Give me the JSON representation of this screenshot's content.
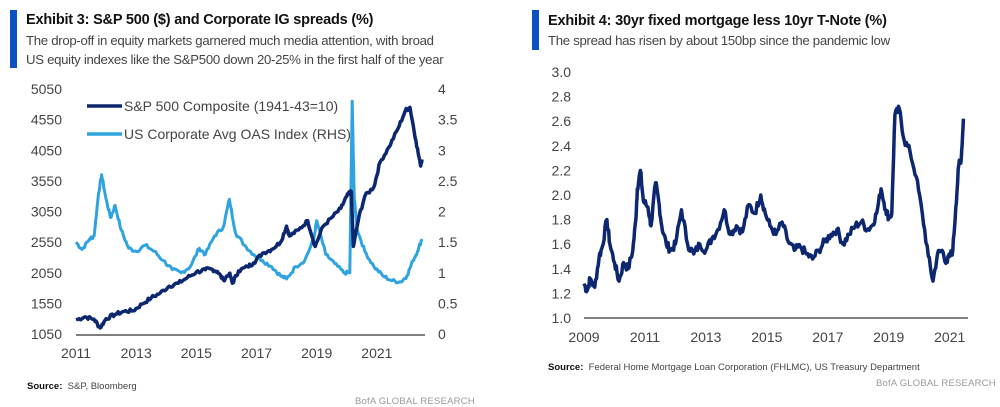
{
  "exhibits": [
    {
      "title": "Exhibit 3: S&P 500 ($) and Corporate IG spreads (%)",
      "subtitle_lines": [
        "The drop-off in equity markets garnered much media attention, with broad",
        "US equity indexes like the S&P500 down 20-25% in the first half of the year"
      ],
      "source_label": "Source:",
      "source_text": "S&P, Bloomberg",
      "brand": "BofA GLOBAL RESEARCH"
    },
    {
      "title": "Exhibit 4: 30yr fixed mortgage less 10yr T-Note (%)",
      "subtitle_lines": [
        "The spread has risen by about 150bp since the pandemic low"
      ],
      "source_label": "Source:",
      "source_text": "Federal Home Mortgage Loan Corporation (FHLMC), US Treasury Department",
      "brand": "BofA GLOBAL RESEARCH"
    }
  ],
  "colors": {
    "accent": "#0a52c4",
    "sp500": "#0c2670",
    "oas": "#2fa3df",
    "mortgage": "#0c2670",
    "axis": "#555555"
  },
  "chart_data": [
    {
      "type": "line",
      "title": "Exhibit 3: S&P 500 ($) and Corporate IG spreads (%)",
      "xlabel": "",
      "ylabel": "",
      "x_ticks": [
        "2011",
        "2013",
        "2015",
        "2017",
        "2019",
        "2021"
      ],
      "xlim": [
        2011.0,
        2022.6
      ],
      "ylim": [
        1050,
        5050
      ],
      "y_ticks": [
        "1050",
        "1550",
        "2050",
        "2550",
        "3050",
        "3550",
        "4050",
        "4550",
        "5050"
      ],
      "y2lim": [
        0,
        4
      ],
      "y2_ticks": [
        "0",
        "0.5",
        "1",
        "1.5",
        "2",
        "2.5",
        "3",
        "3.5",
        "4"
      ],
      "grid": false,
      "legend_position": "top-left",
      "series": [
        {
          "name": "S&P 500 Composite (1941-43=10)",
          "axis": "left",
          "x": [
            2011.0,
            2011.3,
            2011.6,
            2011.8,
            2012.0,
            2012.3,
            2012.6,
            2012.9,
            2013.2,
            2013.5,
            2013.8,
            2014.1,
            2014.4,
            2014.7,
            2015.0,
            2015.3,
            2015.5,
            2015.7,
            2015.9,
            2016.1,
            2016.2,
            2016.4,
            2016.7,
            2016.9,
            2017.2,
            2017.5,
            2017.8,
            2018.0,
            2018.1,
            2018.4,
            2018.7,
            2018.95,
            2019.2,
            2019.5,
            2019.8,
            2020.0,
            2020.15,
            2020.22,
            2020.4,
            2020.6,
            2020.9,
            2021.1,
            2021.4,
            2021.7,
            2021.95,
            2022.1,
            2022.3,
            2022.45,
            2022.5
          ],
          "values": [
            1280,
            1330,
            1290,
            1150,
            1300,
            1370,
            1420,
            1430,
            1540,
            1640,
            1720,
            1830,
            1880,
            1970,
            2060,
            2100,
            2110,
            2070,
            1930,
            2040,
            1880,
            2080,
            2150,
            2210,
            2370,
            2430,
            2550,
            2810,
            2650,
            2750,
            2900,
            2480,
            2800,
            2950,
            3100,
            3300,
            3380,
            2480,
            2950,
            3300,
            3450,
            3850,
            4100,
            4400,
            4700,
            4750,
            4200,
            3800,
            3900
          ]
        },
        {
          "name": "US Corporate Avg OAS Index (RHS)",
          "axis": "right",
          "x": [
            2011.0,
            2011.2,
            2011.45,
            2011.6,
            2011.75,
            2011.85,
            2012.0,
            2012.15,
            2012.3,
            2012.5,
            2012.75,
            2013.0,
            2013.3,
            2013.6,
            2013.9,
            2014.2,
            2014.5,
            2014.8,
            2015.1,
            2015.3,
            2015.6,
            2015.9,
            2016.1,
            2016.3,
            2016.6,
            2016.9,
            2017.2,
            2017.5,
            2017.8,
            2018.0,
            2018.3,
            2018.6,
            2018.9,
            2019.0,
            2019.3,
            2019.6,
            2019.9,
            2020.1,
            2020.18,
            2020.25,
            2020.35,
            2020.6,
            2020.9,
            2021.2,
            2021.5,
            2021.8,
            2022.0,
            2022.2,
            2022.35,
            2022.5
          ],
          "values": [
            1.5,
            1.38,
            1.55,
            1.6,
            2.3,
            2.6,
            2.2,
            1.9,
            2.1,
            1.7,
            1.4,
            1.35,
            1.45,
            1.35,
            1.2,
            1.05,
            1.0,
            1.1,
            1.4,
            1.3,
            1.6,
            1.75,
            2.2,
            1.65,
            1.45,
            1.3,
            1.2,
            1.1,
            0.95,
            0.9,
            1.1,
            1.2,
            1.55,
            1.85,
            1.3,
            1.15,
            1.0,
            1.0,
            3.8,
            2.2,
            1.7,
            1.35,
            1.1,
            0.95,
            0.87,
            0.85,
            0.95,
            1.2,
            1.35,
            1.55
          ]
        }
      ]
    },
    {
      "type": "line",
      "title": "Exhibit 4: 30yr fixed mortgage less 10yr T-Note (%)",
      "xlabel": "",
      "ylabel": "",
      "x_ticks": [
        "2009",
        "2011",
        "2013",
        "2015",
        "2017",
        "2019",
        "2021"
      ],
      "xlim": [
        2009.0,
        2021.6
      ],
      "ylim": [
        1.0,
        3.0
      ],
      "y_ticks": [
        "1.0",
        "1.2",
        "1.4",
        "1.6",
        "1.8",
        "2.0",
        "2.2",
        "2.4",
        "2.6",
        "2.8",
        "3.0"
      ],
      "grid": false,
      "legend_position": "none",
      "series": [
        {
          "name": "30yr fixed mortgage less 10yr T-Note",
          "x": [
            2009.0,
            2009.1,
            2009.2,
            2009.35,
            2009.5,
            2009.6,
            2009.75,
            2009.85,
            2010.0,
            2010.15,
            2010.3,
            2010.45,
            2010.6,
            2010.7,
            2010.75,
            2010.85,
            2010.95,
            2011.1,
            2011.2,
            2011.35,
            2011.45,
            2011.55,
            2011.7,
            2011.85,
            2012.0,
            2012.2,
            2012.4,
            2012.6,
            2012.8,
            2013.0,
            2013.2,
            2013.4,
            2013.6,
            2013.8,
            2014.0,
            2014.2,
            2014.4,
            2014.6,
            2014.8,
            2014.95,
            2015.1,
            2015.3,
            2015.5,
            2015.7,
            2015.9,
            2016.1,
            2016.3,
            2016.5,
            2016.7,
            2016.9,
            2017.1,
            2017.3,
            2017.5,
            2017.7,
            2017.9,
            2018.1,
            2018.3,
            2018.45,
            2018.6,
            2018.75,
            2018.9,
            2019.0,
            2019.1,
            2019.2,
            2019.35,
            2019.5,
            2019.7,
            2019.9,
            2020.1,
            2020.3,
            2020.45,
            2020.6,
            2020.75,
            2020.9,
            2021.0,
            2021.1,
            2021.2,
            2021.3,
            2021.38,
            2021.45
          ],
          "values": [
            1.28,
            1.22,
            1.32,
            1.25,
            1.5,
            1.58,
            1.8,
            1.6,
            1.45,
            1.3,
            1.45,
            1.4,
            1.55,
            1.8,
            2.05,
            2.2,
            1.95,
            1.9,
            1.75,
            2.1,
            1.95,
            1.75,
            1.6,
            1.55,
            1.6,
            1.88,
            1.6,
            1.52,
            1.6,
            1.55,
            1.65,
            1.72,
            1.88,
            1.68,
            1.75,
            1.7,
            1.92,
            1.85,
            2.0,
            1.85,
            1.75,
            1.68,
            1.78,
            1.62,
            1.55,
            1.58,
            1.52,
            1.48,
            1.55,
            1.62,
            1.68,
            1.72,
            1.6,
            1.68,
            1.75,
            1.78,
            1.72,
            1.75,
            1.85,
            2.05,
            1.88,
            1.82,
            1.85,
            2.65,
            2.7,
            2.45,
            2.35,
            2.15,
            1.85,
            1.5,
            1.3,
            1.52,
            1.55,
            1.45,
            1.5,
            1.55,
            1.9,
            2.25,
            2.3,
            2.62
          ]
        }
      ]
    }
  ]
}
